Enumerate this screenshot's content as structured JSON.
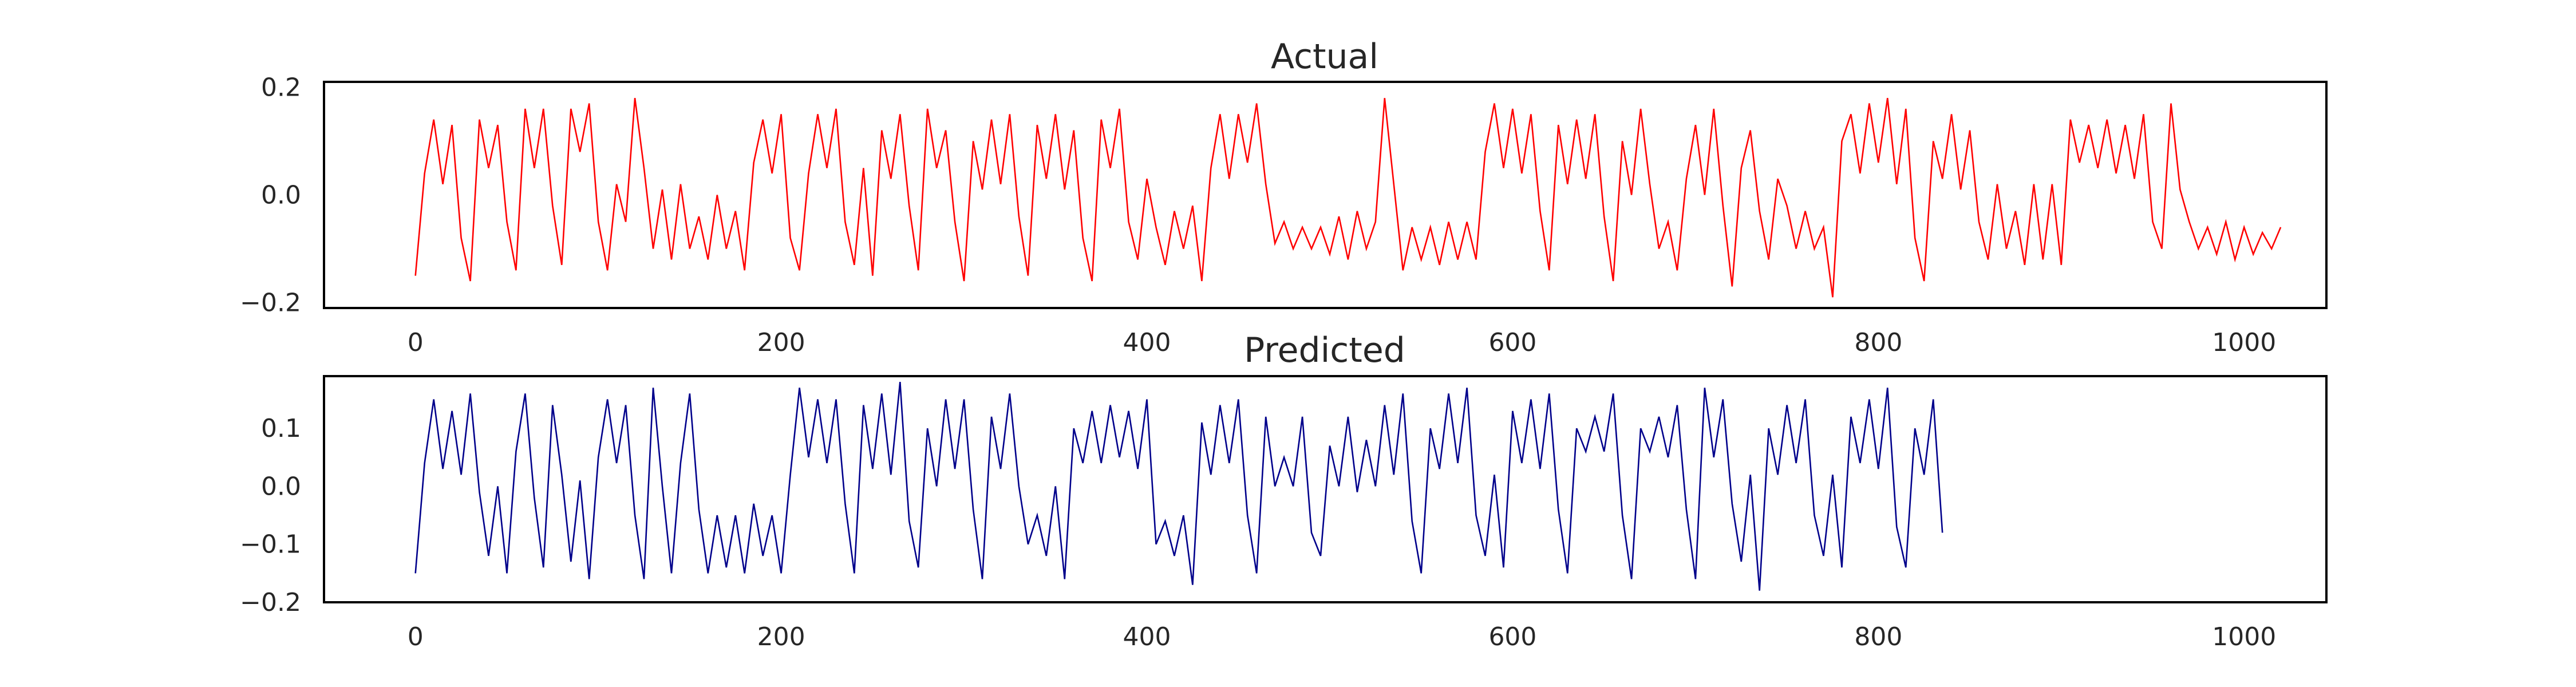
{
  "chart_data": [
    {
      "type": "line",
      "title": "Actual",
      "xlabel": "",
      "ylabel": "",
      "xlim": [
        -50,
        1045
      ],
      "ylim": [
        -0.21,
        0.21
      ],
      "xticks": [
        0,
        200,
        400,
        600,
        800,
        1000
      ],
      "xtick_labels": [
        "0",
        "200",
        "400",
        "600",
        "800",
        "1000"
      ],
      "yticks": [
        -0.2,
        0.0,
        0.2
      ],
      "ytick_labels": [
        "−0.2",
        "0.0",
        "0.2"
      ],
      "grid": false,
      "color": "#ff0000",
      "x_start": 0,
      "x_step": 5,
      "values": [
        -0.15,
        0.04,
        0.14,
        0.02,
        0.13,
        -0.08,
        -0.16,
        0.14,
        0.05,
        0.13,
        -0.05,
        -0.14,
        0.16,
        0.05,
        0.16,
        -0.02,
        -0.13,
        0.16,
        0.08,
        0.17,
        -0.05,
        -0.14,
        0.02,
        -0.05,
        0.18,
        0.05,
        -0.1,
        0.01,
        -0.12,
        0.02,
        -0.1,
        -0.04,
        -0.12,
        0.0,
        -0.1,
        -0.03,
        -0.14,
        0.06,
        0.14,
        0.04,
        0.15,
        -0.08,
        -0.14,
        0.04,
        0.15,
        0.05,
        0.16,
        -0.05,
        -0.13,
        0.05,
        -0.15,
        0.12,
        0.03,
        0.15,
        -0.02,
        -0.14,
        0.16,
        0.05,
        0.12,
        -0.05,
        -0.16,
        0.1,
        0.01,
        0.14,
        0.02,
        0.15,
        -0.04,
        -0.15,
        0.13,
        0.03,
        0.15,
        0.01,
        0.12,
        -0.08,
        -0.16,
        0.14,
        0.05,
        0.16,
        -0.05,
        -0.12,
        0.03,
        -0.06,
        -0.13,
        -0.03,
        -0.1,
        -0.02,
        -0.16,
        0.05,
        0.15,
        0.03,
        0.15,
        0.06,
        0.17,
        0.02,
        -0.09,
        -0.05,
        -0.1,
        -0.06,
        -0.1,
        -0.06,
        -0.11,
        -0.04,
        -0.12,
        -0.03,
        -0.1,
        -0.05,
        0.18,
        0.02,
        -0.14,
        -0.06,
        -0.12,
        -0.06,
        -0.13,
        -0.05,
        -0.12,
        -0.05,
        -0.12,
        0.08,
        0.17,
        0.05,
        0.16,
        0.04,
        0.15,
        -0.03,
        -0.14,
        0.13,
        0.02,
        0.14,
        0.03,
        0.15,
        -0.04,
        -0.16,
        0.1,
        0.0,
        0.16,
        0.02,
        -0.1,
        -0.05,
        -0.14,
        0.03,
        0.13,
        0.0,
        0.16,
        -0.02,
        -0.17,
        0.05,
        0.12,
        -0.03,
        -0.12,
        0.03,
        -0.02,
        -0.1,
        -0.03,
        -0.1,
        -0.06,
        -0.19,
        0.1,
        0.15,
        0.04,
        0.17,
        0.06,
        0.18,
        0.02,
        0.16,
        -0.08,
        -0.16,
        0.1,
        0.03,
        0.15,
        0.01,
        0.12,
        -0.05,
        -0.12,
        0.02,
        -0.1,
        -0.03,
        -0.13,
        0.02,
        -0.12,
        0.02,
        -0.13,
        0.14,
        0.06,
        0.13,
        0.05,
        0.14,
        0.04,
        0.13,
        0.03,
        0.15,
        -0.05,
        -0.1,
        0.17,
        0.01,
        -0.05,
        -0.1,
        -0.06,
        -0.11,
        -0.05,
        -0.12,
        -0.06,
        -0.11,
        -0.07,
        -0.1,
        -0.06
      ]
    },
    {
      "type": "line",
      "title": "Predicted",
      "xlabel": "",
      "ylabel": "",
      "xlim": [
        -50,
        1045
      ],
      "ylim": [
        -0.2,
        0.19
      ],
      "xticks": [
        0,
        200,
        400,
        600,
        800,
        1000
      ],
      "xtick_labels": [
        "0",
        "200",
        "400",
        "600",
        "800",
        "1000"
      ],
      "yticks": [
        -0.2,
        -0.1,
        0.0,
        0.1
      ],
      "ytick_labels": [
        "−0.2",
        "−0.1",
        "0.0",
        "0.1"
      ],
      "grid": false,
      "color": "#00008b",
      "x_start": 0,
      "x_step": 5,
      "values": [
        -0.15,
        0.04,
        0.15,
        0.03,
        0.13,
        0.02,
        0.16,
        -0.01,
        -0.12,
        0.0,
        -0.15,
        0.06,
        0.16,
        -0.02,
        -0.14,
        0.14,
        0.02,
        -0.13,
        0.01,
        -0.16,
        0.05,
        0.15,
        0.04,
        0.14,
        -0.05,
        -0.16,
        0.17,
        0.0,
        -0.15,
        0.04,
        0.16,
        -0.04,
        -0.15,
        -0.05,
        -0.14,
        -0.05,
        -0.15,
        -0.03,
        -0.12,
        -0.05,
        -0.15,
        0.02,
        0.17,
        0.05,
        0.15,
        0.04,
        0.15,
        -0.03,
        -0.15,
        0.14,
        0.03,
        0.16,
        0.02,
        0.18,
        -0.06,
        -0.14,
        0.1,
        0.0,
        0.15,
        0.03,
        0.15,
        -0.04,
        -0.16,
        0.12,
        0.03,
        0.16,
        0.0,
        -0.1,
        -0.05,
        -0.12,
        0.0,
        -0.16,
        0.1,
        0.04,
        0.13,
        0.04,
        0.14,
        0.05,
        0.13,
        0.03,
        0.15,
        -0.1,
        -0.06,
        -0.12,
        -0.05,
        -0.17,
        0.11,
        0.02,
        0.14,
        0.04,
        0.15,
        -0.05,
        -0.15,
        0.12,
        0.0,
        0.05,
        0.0,
        0.12,
        -0.08,
        -0.12,
        0.07,
        0.0,
        0.12,
        -0.01,
        0.08,
        0.0,
        0.14,
        0.02,
        0.16,
        -0.06,
        -0.15,
        0.1,
        0.03,
        0.16,
        0.04,
        0.17,
        -0.05,
        -0.12,
        0.02,
        -0.14,
        0.13,
        0.04,
        0.15,
        0.03,
        0.16,
        -0.04,
        -0.15,
        0.1,
        0.06,
        0.12,
        0.06,
        0.16,
        -0.05,
        -0.16,
        0.1,
        0.06,
        0.12,
        0.05,
        0.14,
        -0.04,
        -0.16,
        0.17,
        0.05,
        0.15,
        -0.03,
        -0.13,
        0.02,
        -0.18,
        0.1,
        0.02,
        0.14,
        0.04,
        0.15,
        -0.05,
        -0.12,
        0.02,
        -0.14,
        0.12,
        0.04,
        0.15,
        0.03,
        0.17,
        -0.07,
        -0.14,
        0.1,
        0.02,
        0.15,
        -0.08
      ]
    }
  ]
}
